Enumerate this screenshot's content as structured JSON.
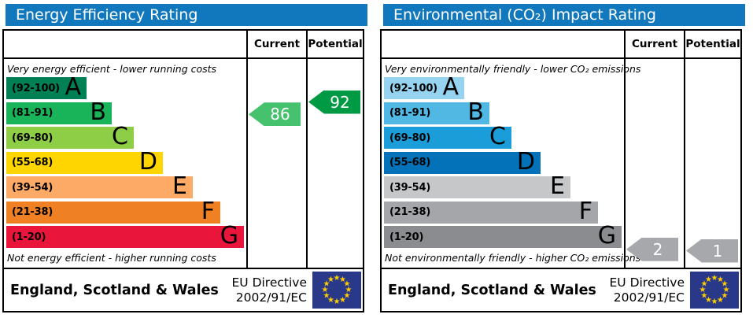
{
  "colors": {
    "header_bg": "#1278be",
    "table_border": "#000000",
    "flag_bg": "#293889",
    "flag_star": "#ffcc00"
  },
  "footer": {
    "region": "England, Scotland & Wales",
    "directive_line1": "EU Directive",
    "directive_line2": "2002/91/EC",
    "flag_star_glyph": "★"
  },
  "panels": [
    {
      "title": "Energy Efficiency Rating",
      "columns": {
        "current": "Current",
        "potential": "Potential"
      },
      "top_note": "Very energy efficient - lower running costs",
      "bottom_note": "Not energy efficient - higher running costs",
      "bands": [
        {
          "letter": "A",
          "range": "(92-100)",
          "min": 92,
          "max": 100,
          "color": "#008054"
        },
        {
          "letter": "B",
          "range": "(81-91)",
          "min": 81,
          "max": 91,
          "color": "#19b459"
        },
        {
          "letter": "C",
          "range": "(69-80)",
          "min": 69,
          "max": 80,
          "color": "#8dce46"
        },
        {
          "letter": "D",
          "range": "(55-68)",
          "min": 55,
          "max": 68,
          "color": "#ffd500"
        },
        {
          "letter": "E",
          "range": "(39-54)",
          "min": 39,
          "max": 54,
          "color": "#fcaa65"
        },
        {
          "letter": "F",
          "range": "(21-38)",
          "min": 21,
          "max": 38,
          "color": "#ef8023"
        },
        {
          "letter": "G",
          "range": "(1-20)",
          "min": 1,
          "max": 20,
          "color": "#e9153b"
        }
      ],
      "current": {
        "value": 86,
        "color": "#46c16e"
      },
      "potential": {
        "value": 92,
        "color": "#009a44"
      }
    },
    {
      "title": "Environmental (CO₂) Impact Rating",
      "columns": {
        "current": "Current",
        "potential": "Potential"
      },
      "top_note": "Very environmentally friendly - lower CO₂ emissions",
      "bottom_note": "Not environmentally friendly - higher CO₂ emissions",
      "bands": [
        {
          "letter": "A",
          "range": "(92-100)",
          "min": 92,
          "max": 100,
          "color": "#95d3f0"
        },
        {
          "letter": "B",
          "range": "(81-91)",
          "min": 81,
          "max": 91,
          "color": "#51b8e3"
        },
        {
          "letter": "C",
          "range": "(69-80)",
          "min": 69,
          "max": 80,
          "color": "#1a9dd8"
        },
        {
          "letter": "D",
          "range": "(55-68)",
          "min": 55,
          "max": 68,
          "color": "#0472b8"
        },
        {
          "letter": "E",
          "range": "(39-54)",
          "min": 39,
          "max": 54,
          "color": "#c6c7c9"
        },
        {
          "letter": "F",
          "range": "(21-38)",
          "min": 21,
          "max": 38,
          "color": "#a5a6a9"
        },
        {
          "letter": "G",
          "range": "(1-20)",
          "min": 1,
          "max": 20,
          "color": "#8b8c8f"
        }
      ],
      "current": {
        "value": 2,
        "color": "#a7a8ab"
      },
      "potential": {
        "value": 1,
        "color": "#a7a8ab"
      }
    }
  ],
  "chart_data": [
    {
      "type": "bar",
      "title": "Energy Efficiency Rating",
      "categories": [
        "A (92-100)",
        "B (81-91)",
        "C (69-80)",
        "D (55-68)",
        "E (39-54)",
        "F (21-38)",
        "G (1-20)"
      ],
      "series": [
        {
          "name": "Current",
          "values": [
            86
          ]
        },
        {
          "name": "Potential",
          "values": [
            92
          ]
        }
      ],
      "current": 86,
      "potential": 92,
      "scale": [
        1,
        100
      ],
      "top_annotation": "Very energy efficient - lower running costs",
      "bottom_annotation": "Not energy efficient - higher running costs",
      "region": "England, Scotland & Wales",
      "directive": "EU Directive 2002/91/EC"
    },
    {
      "type": "bar",
      "title": "Environmental (CO₂) Impact Rating",
      "categories": [
        "A (92-100)",
        "B (81-91)",
        "C (69-80)",
        "D (55-68)",
        "E (39-54)",
        "F (21-38)",
        "G (1-20)"
      ],
      "series": [
        {
          "name": "Current",
          "values": [
            2
          ]
        },
        {
          "name": "Potential",
          "values": [
            1
          ]
        }
      ],
      "current": 2,
      "potential": 1,
      "scale": [
        1,
        100
      ],
      "top_annotation": "Very environmentally friendly - lower CO₂ emissions",
      "bottom_annotation": "Not environmentally friendly - higher CO₂ emissions",
      "region": "England, Scotland & Wales",
      "directive": "EU Directive 2002/91/EC"
    }
  ]
}
